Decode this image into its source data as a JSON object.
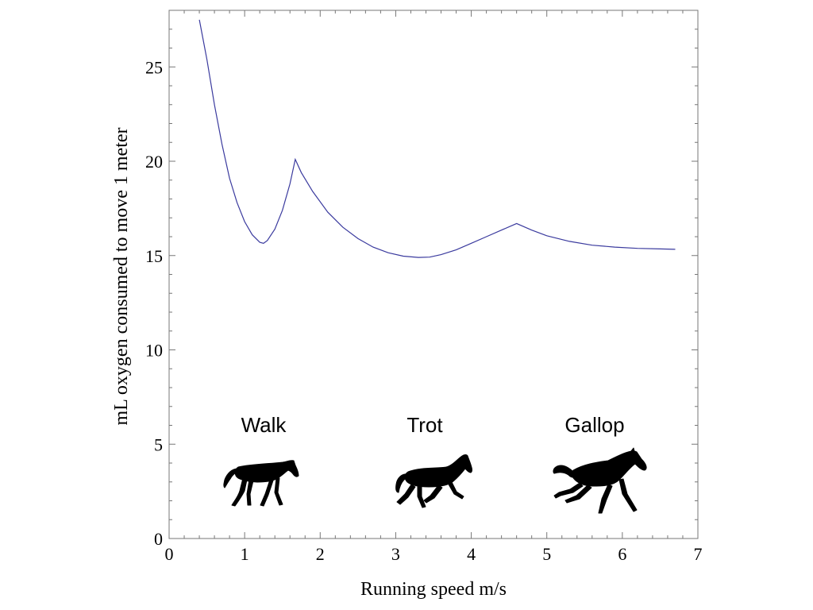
{
  "chart_data": {
    "type": "line",
    "title": "",
    "xlabel": "Running speed m/s",
    "ylabel": "mL oxygen consumed to move 1 meter",
    "xlim": [
      0,
      7
    ],
    "ylim": [
      0,
      28
    ],
    "xticks": [
      0,
      1,
      2,
      3,
      4,
      5,
      6,
      7
    ],
    "yticks": [
      0,
      5,
      10,
      15,
      20,
      25
    ],
    "grid": false,
    "line_color": "#3a3a9e",
    "series": [
      {
        "x": [
          0.4,
          0.5,
          0.6,
          0.7,
          0.8,
          0.9,
          1.0,
          1.1,
          1.2,
          1.25,
          1.3,
          1.4,
          1.5,
          1.6,
          1.67,
          1.75,
          1.9,
          2.1,
          2.3,
          2.5,
          2.7,
          2.9,
          3.1,
          3.3,
          3.45,
          3.6,
          3.8,
          4.0,
          4.2,
          4.4,
          4.6,
          4.8,
          5.0,
          5.3,
          5.6,
          5.9,
          6.2,
          6.5,
          6.7
        ],
        "y": [
          27.5,
          25.4,
          23.0,
          20.9,
          19.1,
          17.8,
          16.8,
          16.1,
          15.7,
          15.65,
          15.8,
          16.4,
          17.4,
          18.8,
          20.1,
          19.4,
          18.4,
          17.3,
          16.5,
          15.9,
          15.45,
          15.15,
          14.97,
          14.9,
          14.92,
          15.05,
          15.3,
          15.65,
          16.0,
          16.35,
          16.7,
          16.35,
          16.05,
          15.75,
          15.55,
          15.45,
          15.38,
          15.35,
          15.33
        ]
      }
    ],
    "annotations": [
      {
        "text": "Walk",
        "icon": "walking-horse-icon"
      },
      {
        "text": "Trot",
        "icon": "trotting-horse-icon"
      },
      {
        "text": "Gallop",
        "icon": "galloping-horse-icon"
      }
    ]
  }
}
